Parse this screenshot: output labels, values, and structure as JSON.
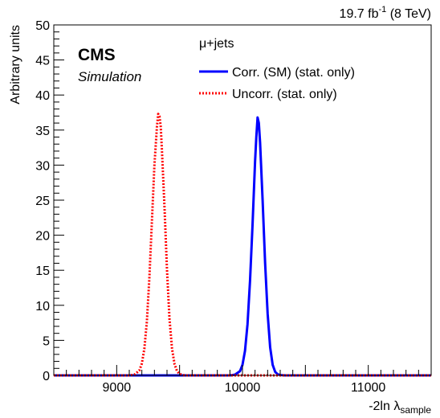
{
  "chart_data": {
    "type": "line",
    "top_right_label": {
      "prefix": "19.7 fb",
      "sup": "-1",
      "suffix": " (8 TeV)"
    },
    "experiment": "CMS",
    "status": "Simulation",
    "channel": "μ+jets",
    "xlabel": {
      "main": "-2ln λ",
      "sub": "sample"
    },
    "ylabel": "Arbitrary units",
    "xlim": [
      8500,
      11500
    ],
    "ylim": [
      0,
      50
    ],
    "x_ticks": [
      {
        "value": 9000,
        "label": "9000"
      },
      {
        "value": 10000,
        "label": "10000"
      },
      {
        "value": 11000,
        "label": "11000"
      }
    ],
    "y_ticks": [
      {
        "value": 0,
        "label": "0"
      },
      {
        "value": 5,
        "label": "5"
      },
      {
        "value": 10,
        "label": "10"
      },
      {
        "value": 15,
        "label": "15"
      },
      {
        "value": 20,
        "label": "20"
      },
      {
        "value": 25,
        "label": "25"
      },
      {
        "value": 30,
        "label": "30"
      },
      {
        "value": 35,
        "label": "35"
      },
      {
        "value": 40,
        "label": "40"
      },
      {
        "value": 45,
        "label": "45"
      },
      {
        "value": 50,
        "label": "50"
      }
    ],
    "grid": false,
    "legend_position": "top-right",
    "series": [
      {
        "name": "Corr. (SM) (stat. only)",
        "color": "#0000ff",
        "style": "solid",
        "x": [
          9900,
          9940,
          9980,
          10000,
          10020,
          10040,
          10060,
          10080,
          10100,
          10110,
          10120,
          10130,
          10140,
          10160,
          10180,
          10200,
          10220,
          10240,
          10260,
          10280,
          10300,
          10340
        ],
        "y": [
          0,
          0.1,
          0.6,
          1.5,
          3.5,
          7.3,
          13.5,
          21.5,
          30.5,
          34.0,
          36.8,
          36.0,
          33.2,
          25.0,
          16.0,
          8.8,
          4.0,
          1.5,
          0.5,
          0.15,
          0.05,
          0
        ]
      },
      {
        "name": "Uncorr. (stat. only)",
        "color": "#ff0000",
        "style": "dotted",
        "x": [
          9100,
          9140,
          9180,
          9200,
          9220,
          9240,
          9260,
          9280,
          9300,
          9320,
          9330,
          9340,
          9350,
          9360,
          9380,
          9400,
          9420,
          9440,
          9460,
          9480,
          9500,
          9540,
          9600
        ],
        "y": [
          0,
          0.1,
          0.7,
          1.7,
          3.8,
          7.7,
          14.0,
          22.0,
          30.0,
          35.5,
          37.3,
          37.0,
          35.5,
          32.0,
          24.0,
          15.0,
          8.0,
          3.8,
          1.6,
          0.6,
          0.2,
          0,
          0
        ]
      }
    ]
  }
}
